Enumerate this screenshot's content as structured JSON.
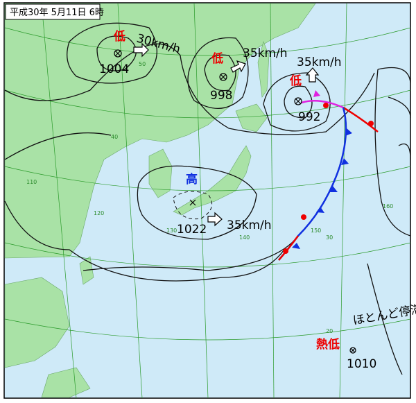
{
  "header": {
    "title": "平成30年 5月11日 6時"
  },
  "systems": [
    {
      "label": "低",
      "pressure": 1004,
      "motion": "30km/h"
    },
    {
      "label": "低",
      "pressure": 998,
      "motion": "35km/h"
    },
    {
      "label": "低",
      "pressure": 992,
      "motion": "35km/h"
    },
    {
      "label": "高",
      "pressure": 1022,
      "motion": "35km/h"
    },
    {
      "label": "熱低",
      "pressure": 1010,
      "motion": "ほとんど停滞"
    }
  ],
  "grid_labels": [
    "50",
    "40",
    "30",
    "20",
    "110",
    "120",
    "130",
    "140",
    "150",
    "160"
  ]
}
